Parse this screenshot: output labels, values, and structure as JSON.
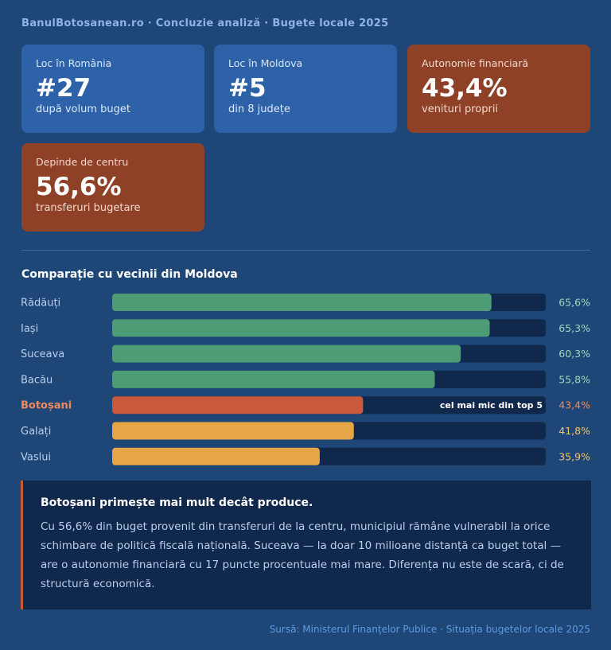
{
  "header": {
    "breadcrumb": "BanulBotosanean.ro · Concluzie analiză · Bugete locale 2025"
  },
  "cards": [
    {
      "label": "Loc în România",
      "value": "#27",
      "sub": "după volum buget",
      "color": "#2d62a8"
    },
    {
      "label": "Loc în Moldova",
      "value": "#5",
      "sub": "din 8 județe",
      "color": "#2d62a8"
    },
    {
      "label": "Autonomie financiară",
      "value": "43,4%",
      "sub": "venituri proprii",
      "color": "#8e4126"
    },
    {
      "label": "Depinde de centru",
      "value": "56,6%",
      "sub": "transferuri bugetare",
      "color": "#8e4126"
    }
  ],
  "section_title": "Comparație cu vecinii din Moldova",
  "chart_data": {
    "type": "bar",
    "orientation": "horizontal",
    "categories": [
      "Rădăuți",
      "Iași",
      "Suceava",
      "Bacău",
      "Botoșani",
      "Galați",
      "Vaslui"
    ],
    "values": [
      65.6,
      65.3,
      60.3,
      55.8,
      43.4,
      41.8,
      35.9
    ],
    "value_labels": [
      "65,6%",
      "65,3%",
      "60,3%",
      "55,8%",
      "43,4%",
      "41,8%",
      "35,9%"
    ],
    "xlim": [
      0,
      75
    ],
    "highlight": "Botoșani",
    "annotation": {
      "category": "Botoșani",
      "text": "cel mai mic din top 5"
    },
    "colors": {
      "green": "#4e9c76",
      "highlight": "#c9593a",
      "yellow": "#e6a645",
      "track": "#10284c",
      "label_green": "#9fd8bf",
      "label_highlight": "#f08a5d",
      "label_yellow": "#f2c16a"
    },
    "bar_colors": [
      "green",
      "green",
      "green",
      "green",
      "highlight",
      "yellow",
      "yellow"
    ]
  },
  "callout": {
    "title": "Botoșani primește mai mult decât produce.",
    "body": "Cu 56,6% din buget provenit din transferuri de la centru, municipiul rămâne vulnerabil la orice schimbare de politică fiscală națională. Suceava — la doar 10 milioane distanță ca buget total — are o autonomie financiară cu 17 puncte procentuale mai mare. Diferența nu este de scară, ci de structură economică."
  },
  "source": "Sursă: Ministerul Finanțelor Publice · Situația bugetelor locale 2025"
}
